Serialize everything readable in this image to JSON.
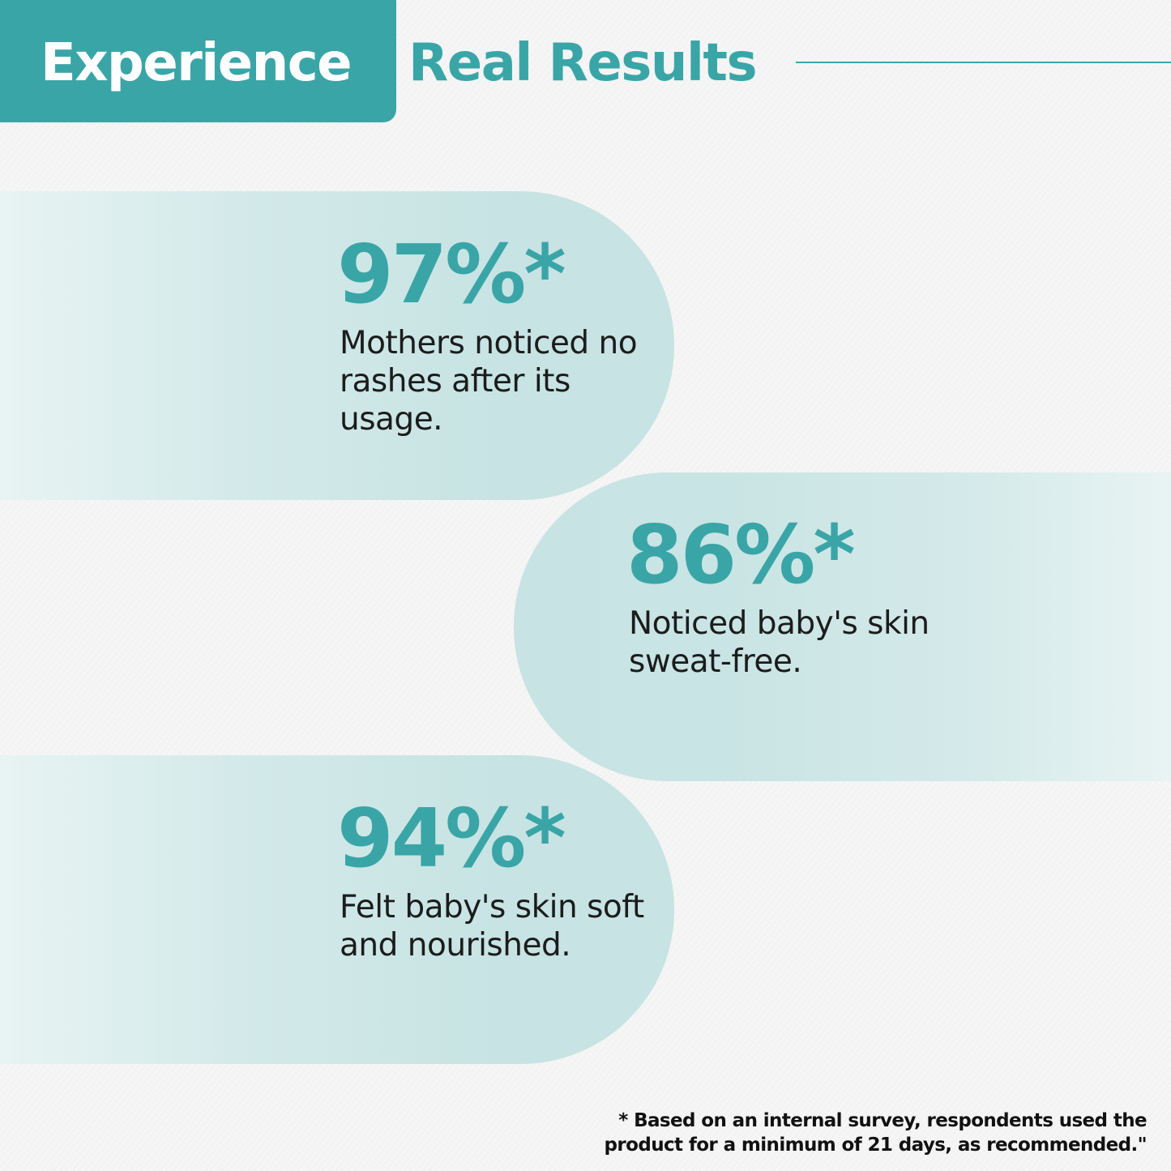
{
  "header": {
    "title_highlight": "Experience",
    "title_rest": "Real Results"
  },
  "stats": [
    {
      "value": "97%*",
      "description": "Mothers noticed no rashes after its usage."
    },
    {
      "value": "86%*",
      "description": "Noticed baby's skin sweat-free."
    },
    {
      "value": "94%*",
      "description": "Felt baby's skin soft and nourished."
    }
  ],
  "footnote": "* Based on an internal survey, respondents used the product for a minimum of 21 days, as recommended.\"",
  "colors": {
    "accent": "#3aa5a7",
    "pill": "#c7e3e3",
    "text": "#1c1c1c",
    "background": "#f4f4f4"
  }
}
